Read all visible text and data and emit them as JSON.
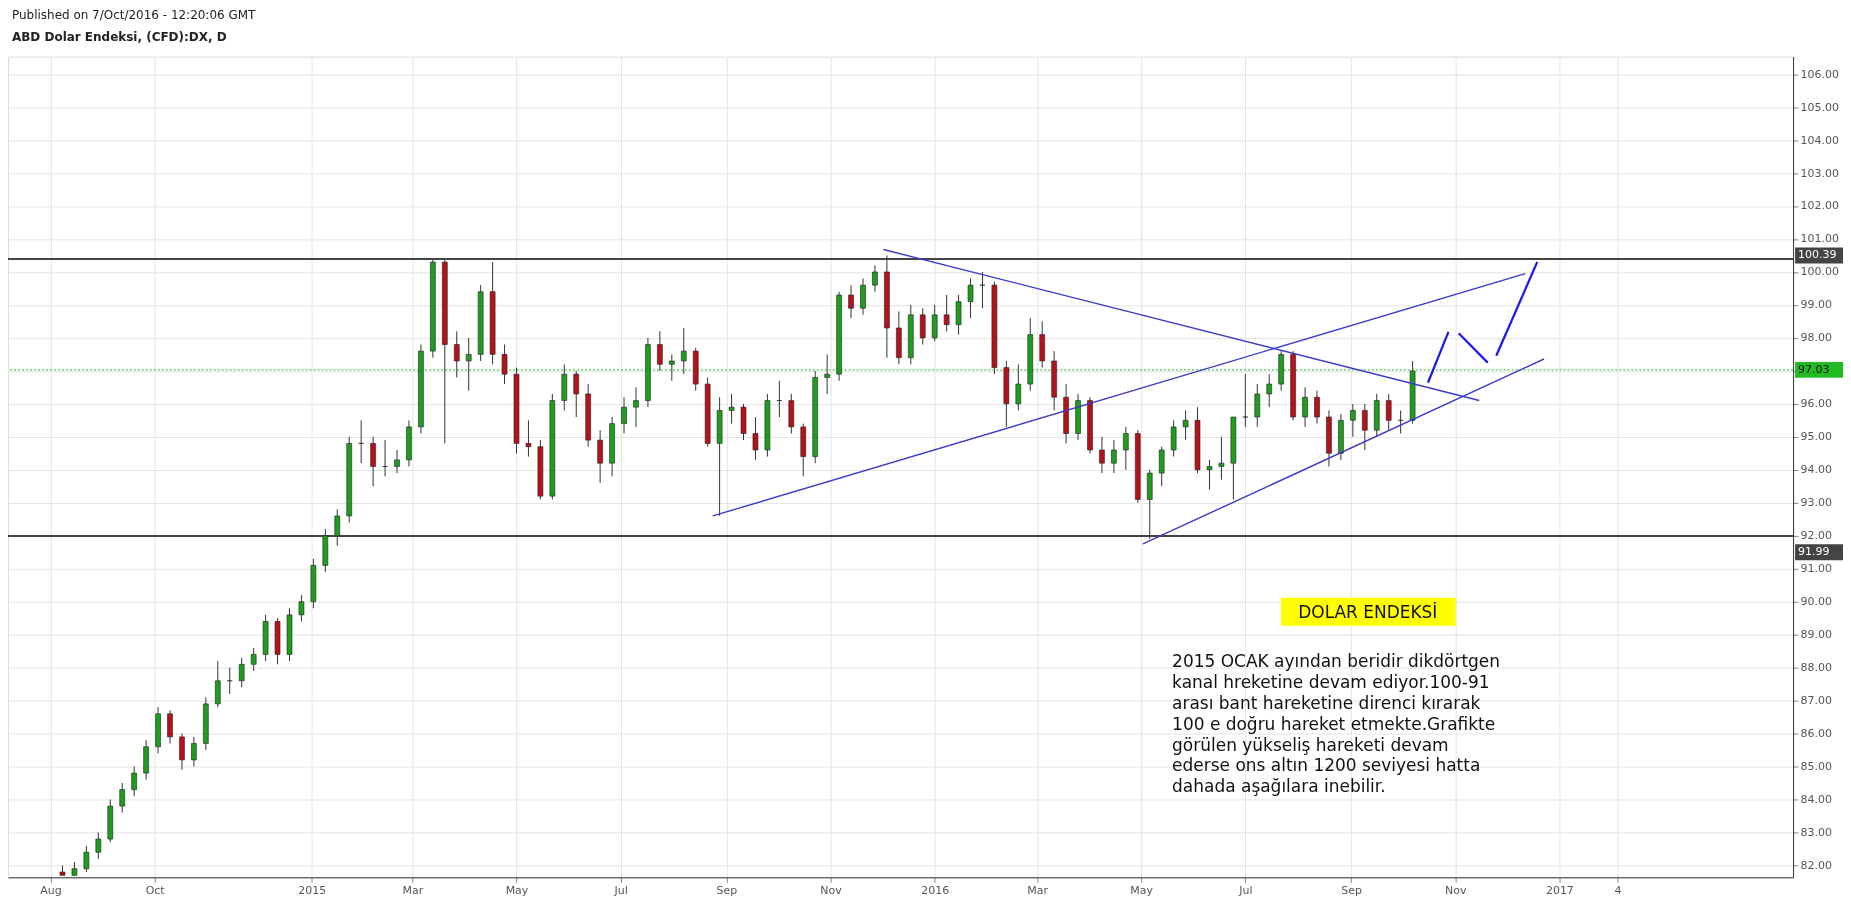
{
  "chart_data": {
    "type": "candlestick",
    "title": "ABD Dolar Endeksi, (CFD):DX, D",
    "annotations": [
      "Published on 7/Oct/2016 - 12:20:06 GMT",
      "DOLAR ENDEKSİ",
      "2015 OCAK  ayından beridir dikdörtgen\nkanal hreketine devam ediyor.100-91\narası bant hareketine direnci kırarak\n100 e doğru hareket etmekte.Grafikte\ngörülen  yükseliş hareketi devam\nederse ons altın 1200 seviyesi hatta\ndahada aşağılara inebilir."
    ],
    "x": [
      "2014-08-08",
      "2014-08-15",
      "2014-08-22",
      "2014-08-29",
      "2014-09-05",
      "2014-09-12",
      "2014-09-19",
      "2014-09-26",
      "2014-10-03",
      "2014-10-10",
      "2014-10-17",
      "2014-10-24",
      "2014-10-31",
      "2014-11-07",
      "2014-11-14",
      "2014-11-21",
      "2014-11-28",
      "2014-12-05",
      "2014-12-12",
      "2014-12-19",
      "2014-12-26",
      "2015-01-02",
      "2015-01-09",
      "2015-01-16",
      "2015-01-23",
      "2015-01-30",
      "2015-02-06",
      "2015-02-13",
      "2015-02-20",
      "2015-02-27",
      "2015-03-06",
      "2015-03-13",
      "2015-03-20",
      "2015-03-27",
      "2015-04-03",
      "2015-04-10",
      "2015-04-17",
      "2015-04-24",
      "2015-05-01",
      "2015-05-08",
      "2015-05-15",
      "2015-05-22",
      "2015-05-29",
      "2015-06-05",
      "2015-06-12",
      "2015-06-19",
      "2015-06-26",
      "2015-07-03",
      "2015-07-10",
      "2015-07-17",
      "2015-07-24",
      "2015-07-31",
      "2015-08-07",
      "2015-08-14",
      "2015-08-21",
      "2015-08-28",
      "2015-09-04",
      "2015-09-11",
      "2015-09-18",
      "2015-09-25",
      "2015-10-02",
      "2015-10-09",
      "2015-10-16",
      "2015-10-23",
      "2015-10-30",
      "2015-11-06",
      "2015-11-13",
      "2015-11-20",
      "2015-11-27",
      "2015-12-04",
      "2015-12-11",
      "2015-12-18",
      "2015-12-25",
      "2016-01-01",
      "2016-01-08",
      "2016-01-15",
      "2016-01-22",
      "2016-01-29",
      "2016-02-05",
      "2016-02-12",
      "2016-02-19",
      "2016-02-26",
      "2016-03-04",
      "2016-03-11",
      "2016-03-18",
      "2016-03-25",
      "2016-04-01",
      "2016-04-08",
      "2016-04-15",
      "2016-04-22",
      "2016-04-29",
      "2016-05-06",
      "2016-05-13",
      "2016-05-20",
      "2016-05-27",
      "2016-06-03",
      "2016-06-10",
      "2016-06-17",
      "2016-06-24",
      "2016-07-01",
      "2016-07-08",
      "2016-07-15",
      "2016-07-22",
      "2016-07-29",
      "2016-08-05",
      "2016-08-12",
      "2016-08-19",
      "2016-08-26",
      "2016-09-02",
      "2016-09-09",
      "2016-09-16",
      "2016-09-23",
      "2016-09-30",
      "2016-10-07"
    ],
    "ohlc": [
      [
        81.8,
        82.0,
        81.7,
        81.7
      ],
      [
        81.7,
        82.1,
        81.7,
        81.9
      ],
      [
        81.9,
        82.6,
        81.8,
        82.4
      ],
      [
        82.4,
        83.0,
        82.2,
        82.8
      ],
      [
        82.8,
        84.0,
        82.7,
        83.8
      ],
      [
        83.8,
        84.5,
        83.6,
        84.3
      ],
      [
        84.3,
        85.0,
        84.1,
        84.8
      ],
      [
        84.8,
        85.8,
        84.6,
        85.6
      ],
      [
        85.6,
        86.8,
        85.4,
        86.6
      ],
      [
        86.6,
        86.7,
        85.7,
        85.9
      ],
      [
        85.9,
        86.0,
        84.9,
        85.2
      ],
      [
        85.2,
        85.9,
        85.0,
        85.7
      ],
      [
        85.7,
        87.1,
        85.5,
        86.9
      ],
      [
        86.9,
        88.2,
        86.8,
        87.6
      ],
      [
        87.6,
        88.0,
        87.2,
        87.6
      ],
      [
        87.6,
        88.3,
        87.4,
        88.1
      ],
      [
        88.1,
        88.6,
        87.9,
        88.4
      ],
      [
        88.4,
        89.6,
        88.2,
        89.4
      ],
      [
        89.4,
        89.5,
        88.1,
        88.4
      ],
      [
        88.4,
        89.8,
        88.2,
        89.6
      ],
      [
        89.6,
        90.2,
        89.4,
        90.0
      ],
      [
        90.0,
        91.3,
        89.8,
        91.1
      ],
      [
        91.1,
        92.2,
        90.9,
        92.0
      ],
      [
        92.0,
        92.8,
        91.7,
        92.6
      ],
      [
        92.6,
        95.0,
        92.4,
        94.8
      ],
      [
        94.8,
        95.5,
        94.2,
        94.8
      ],
      [
        94.8,
        95.0,
        93.5,
        94.1
      ],
      [
        94.1,
        94.9,
        93.8,
        94.1
      ],
      [
        94.1,
        94.6,
        93.9,
        94.3
      ],
      [
        94.3,
        95.5,
        94.1,
        95.3
      ],
      [
        95.3,
        97.8,
        95.1,
        97.6
      ],
      [
        97.6,
        100.4,
        97.4,
        100.3
      ],
      [
        100.3,
        100.4,
        94.8,
        97.8
      ],
      [
        97.8,
        98.2,
        96.8,
        97.3
      ],
      [
        97.3,
        98.0,
        96.4,
        97.5
      ],
      [
        97.5,
        99.6,
        97.3,
        99.4
      ],
      [
        99.4,
        100.3,
        97.2,
        97.5
      ],
      [
        97.5,
        97.8,
        96.6,
        96.9
      ],
      [
        96.9,
        97.1,
        94.5,
        94.8
      ],
      [
        94.8,
        95.5,
        94.4,
        94.7
      ],
      [
        94.7,
        94.9,
        93.1,
        93.2
      ],
      [
        93.2,
        96.3,
        93.1,
        96.1
      ],
      [
        96.1,
        97.2,
        95.8,
        96.9
      ],
      [
        96.9,
        97.0,
        95.6,
        96.3
      ],
      [
        96.3,
        96.6,
        94.7,
        94.9
      ],
      [
        94.9,
        95.2,
        93.6,
        94.2
      ],
      [
        94.2,
        95.6,
        93.8,
        95.4
      ],
      [
        95.4,
        96.2,
        95.1,
        95.9
      ],
      [
        95.9,
        96.5,
        95.3,
        96.1
      ],
      [
        96.1,
        98.0,
        95.9,
        97.8
      ],
      [
        97.8,
        98.2,
        97.0,
        97.2
      ],
      [
        97.2,
        97.5,
        96.7,
        97.3
      ],
      [
        97.3,
        98.3,
        96.9,
        97.6
      ],
      [
        97.6,
        97.7,
        96.4,
        96.6
      ],
      [
        96.6,
        96.8,
        94.7,
        94.8
      ],
      [
        94.8,
        96.2,
        92.6,
        95.8
      ],
      [
        95.8,
        96.3,
        95.4,
        95.9
      ],
      [
        95.9,
        96.0,
        94.9,
        95.1
      ],
      [
        95.1,
        95.6,
        94.3,
        94.6
      ],
      [
        94.6,
        96.3,
        94.4,
        96.1
      ],
      [
        96.1,
        96.7,
        95.6,
        96.1
      ],
      [
        96.1,
        96.3,
        95.1,
        95.3
      ],
      [
        95.3,
        95.4,
        93.8,
        94.4
      ],
      [
        94.4,
        97.0,
        94.2,
        96.8
      ],
      [
        96.8,
        97.5,
        96.3,
        96.9
      ],
      [
        96.9,
        99.4,
        96.7,
        99.3
      ],
      [
        99.3,
        99.6,
        98.6,
        98.9
      ],
      [
        98.9,
        99.8,
        98.7,
        99.6
      ],
      [
        99.6,
        100.2,
        99.4,
        100.0
      ],
      [
        100.0,
        100.5,
        97.4,
        98.3
      ],
      [
        98.3,
        98.8,
        97.2,
        97.4
      ],
      [
        97.4,
        99.0,
        97.2,
        98.7
      ],
      [
        98.7,
        98.9,
        97.8,
        98.0
      ],
      [
        98.0,
        99.0,
        97.9,
        98.7
      ],
      [
        98.7,
        99.3,
        98.2,
        98.4
      ],
      [
        98.4,
        99.3,
        98.1,
        99.1
      ],
      [
        99.1,
        99.8,
        98.6,
        99.6
      ],
      [
        99.6,
        100.0,
        98.9,
        99.6
      ],
      [
        99.6,
        99.7,
        96.9,
        97.1
      ],
      [
        97.1,
        97.3,
        95.3,
        96.0
      ],
      [
        96.0,
        97.2,
        95.8,
        96.6
      ],
      [
        96.6,
        98.6,
        96.4,
        98.1
      ],
      [
        98.1,
        98.5,
        97.1,
        97.3
      ],
      [
        97.3,
        97.6,
        95.8,
        96.2
      ],
      [
        96.2,
        96.6,
        94.8,
        95.1
      ],
      [
        95.1,
        96.3,
        94.9,
        96.1
      ],
      [
        96.1,
        96.2,
        94.5,
        94.6
      ],
      [
        94.6,
        95.0,
        93.9,
        94.2
      ],
      [
        94.2,
        94.9,
        93.9,
        94.6
      ],
      [
        94.6,
        95.3,
        94.0,
        95.1
      ],
      [
        95.1,
        95.2,
        93.0,
        93.1
      ],
      [
        93.1,
        94.0,
        91.9,
        93.9
      ],
      [
        93.9,
        94.7,
        93.5,
        94.6
      ],
      [
        94.6,
        95.5,
        94.4,
        95.3
      ],
      [
        95.3,
        95.8,
        94.9,
        95.5
      ],
      [
        95.5,
        95.9,
        93.9,
        94.0
      ],
      [
        94.0,
        94.3,
        93.4,
        94.1
      ],
      [
        94.1,
        95.0,
        93.7,
        94.2
      ],
      [
        94.2,
        95.6,
        93.1,
        95.6
      ],
      [
        95.6,
        96.9,
        95.3,
        95.6
      ],
      [
        95.6,
        96.6,
        95.3,
        96.3
      ],
      [
        96.3,
        96.9,
        95.9,
        96.6
      ],
      [
        96.6,
        97.6,
        96.4,
        97.5
      ],
      [
        97.5,
        97.6,
        95.5,
        95.6
      ],
      [
        95.6,
        96.5,
        95.3,
        96.2
      ],
      [
        96.2,
        96.4,
        95.4,
        95.6
      ],
      [
        95.6,
        95.8,
        94.1,
        94.5
      ],
      [
        94.5,
        95.7,
        94.3,
        95.5
      ],
      [
        95.5,
        96.0,
        95.0,
        95.8
      ],
      [
        95.8,
        96.0,
        94.6,
        95.2
      ],
      [
        95.2,
        96.3,
        95.0,
        96.1
      ],
      [
        96.1,
        96.3,
        95.2,
        95.5
      ],
      [
        95.5,
        95.8,
        95.1,
        95.5
      ],
      [
        95.5,
        97.3,
        95.4,
        97.0
      ]
    ],
    "series": [
      {
        "type": "line",
        "color": "#3a3acc",
        "x": [
          "2015-08-24",
          "2016-12-12"
        ],
        "values": [
          92.6,
          99.95
        ]
      },
      {
        "type": "line",
        "color": "#3a3acc",
        "x": [
          "2016-05-02",
          "2016-12-23"
        ],
        "values": [
          91.75,
          97.36
        ]
      },
      {
        "type": "line",
        "color": "#3a3acc",
        "x": [
          "2015-12-02",
          "2016-11-15"
        ],
        "values": [
          100.68,
          96.1
        ]
      },
      {
        "type": "line",
        "color": "#1a1aee",
        "x": [
          "2016-10-16",
          "2016-10-28"
        ],
        "values": [
          96.64,
          98.18
        ]
      },
      {
        "type": "line",
        "color": "#1a1aee",
        "x": [
          "2016-11-03",
          "2016-11-20"
        ],
        "values": [
          98.14,
          97.25
        ]
      },
      {
        "type": "line",
        "color": "#1a1aee",
        "x": [
          "2016-11-25",
          "2016-12-19"
        ],
        "values": [
          97.46,
          100.3
        ]
      }
    ],
    "ref_lines": [
      {
        "axis": "y",
        "value": 100.39,
        "label": "100.39",
        "color": "#444444",
        "line_style": "solid"
      },
      {
        "axis": "y",
        "value": 91.99,
        "label": "91.99",
        "color": "#444444",
        "line_style": "solid"
      },
      {
        "axis": "y",
        "value": 97.03,
        "label": "97.03",
        "color": "#22bb22",
        "line_style": "dotted"
      }
    ],
    "xlim": [
      "2014-07-10",
      "2017-05-15"
    ],
    "xticks": [
      {
        "value": "2014-08-01",
        "label": "Aug"
      },
      {
        "value": "2014-10-01",
        "label": "Oct"
      },
      {
        "value": "2015-01-01",
        "label": "2015"
      },
      {
        "value": "2015-03-01",
        "label": "Mar"
      },
      {
        "value": "2015-05-01",
        "label": "May"
      },
      {
        "value": "2015-07-01",
        "label": "Jul"
      },
      {
        "value": "2015-09-01",
        "label": "Sep"
      },
      {
        "value": "2015-11-01",
        "label": "Nov"
      },
      {
        "value": "2016-01-01",
        "label": "2016"
      },
      {
        "value": "2016-03-01",
        "label": "Mar"
      },
      {
        "value": "2016-05-01",
        "label": "May"
      },
      {
        "value": "2016-07-01",
        "label": "Jul"
      },
      {
        "value": "2016-09-01",
        "label": "Sep"
      },
      {
        "value": "2016-11-01",
        "label": "Nov"
      },
      {
        "value": "2017-01-01",
        "label": "2017"
      },
      {
        "value": "2017-02-04",
        "label": "4"
      }
    ],
    "ylim": [
      81.64,
      106.53
    ],
    "yticks": [
      {
        "value": 82,
        "label": "82.00"
      },
      {
        "value": 83,
        "label": "83.00"
      },
      {
        "value": 84,
        "label": "84.00"
      },
      {
        "value": 85,
        "label": "85.00"
      },
      {
        "value": 86,
        "label": "86.00"
      },
      {
        "value": 87,
        "label": "87.00"
      },
      {
        "value": 88,
        "label": "88.00"
      },
      {
        "value": 89,
        "label": "89.00"
      },
      {
        "value": 90,
        "label": "90.00"
      },
      {
        "value": 91,
        "label": "91.00"
      },
      {
        "value": 92,
        "label": "92.00"
      },
      {
        "value": 93,
        "label": "93.00"
      },
      {
        "value": 94,
        "label": "94.00"
      },
      {
        "value": 95,
        "label": "95.00"
      },
      {
        "value": 96,
        "label": "96.00"
      },
      {
        "value": 97,
        "label": null
      },
      {
        "value": 98,
        "label": "98.00"
      },
      {
        "value": 99,
        "label": "99.00"
      },
      {
        "value": 100,
        "label": "100.00"
      },
      {
        "value": 101,
        "label": "101.00"
      },
      {
        "value": 102,
        "label": "102.00"
      },
      {
        "value": 103,
        "label": "103.00"
      },
      {
        "value": 104,
        "label": "104.00"
      },
      {
        "value": 105,
        "label": "105.00"
      },
      {
        "value": 106,
        "label": "106.00"
      }
    ],
    "grid": true
  }
}
